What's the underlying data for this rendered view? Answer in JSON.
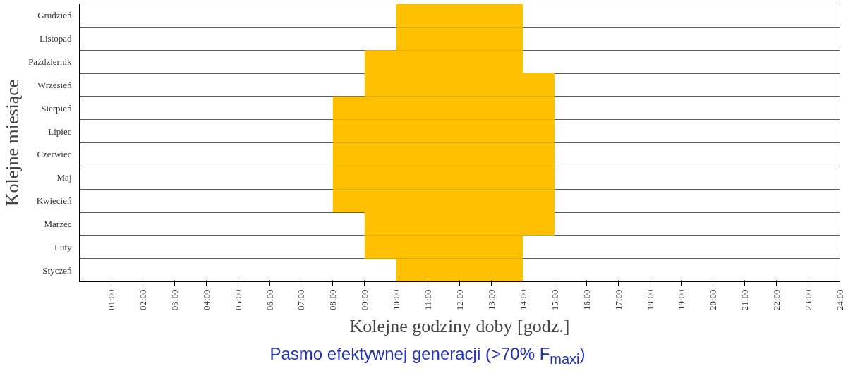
{
  "chart_data": {
    "type": "bar",
    "orientation": "horizontal",
    "xlabel": "Kolejne godziny doby [godz.]",
    "ylabel": "Kolejne miesiące",
    "categories": [
      "Grudzień",
      "Listopad",
      "Październik",
      "Wrzesień",
      "Sierpień",
      "Lipiec",
      "Czerwiec",
      "Maj",
      "Kwiecień",
      "Marzec",
      "Luty",
      "Styczeń"
    ],
    "base": [
      10,
      10,
      9,
      9,
      8,
      8,
      8,
      8,
      8,
      9,
      9,
      10
    ],
    "values": [
      4,
      4,
      5,
      6,
      7,
      7,
      7,
      7,
      7,
      6,
      5,
      4
    ],
    "color": "#ffc000",
    "xlim": [
      0,
      24
    ],
    "xticks": [
      {
        "value": 1,
        "label": "01:00"
      },
      {
        "value": 2,
        "label": "02:00"
      },
      {
        "value": 3,
        "label": "03:00"
      },
      {
        "value": 4,
        "label": "04:00"
      },
      {
        "value": 5,
        "label": "05:00"
      },
      {
        "value": 6,
        "label": "06:00"
      },
      {
        "value": 7,
        "label": "07:00"
      },
      {
        "value": 8,
        "label": "08:00"
      },
      {
        "value": 9,
        "label": "09:00"
      },
      {
        "value": 10,
        "label": "10:00"
      },
      {
        "value": 11,
        "label": "11:00"
      },
      {
        "value": 12,
        "label": "12:00"
      },
      {
        "value": 13,
        "label": "13:00"
      },
      {
        "value": 14,
        "label": "14:00"
      },
      {
        "value": 15,
        "label": "15:00"
      },
      {
        "value": 16,
        "label": "16:00"
      },
      {
        "value": 17,
        "label": "17:00"
      },
      {
        "value": 18,
        "label": "18:00"
      },
      {
        "value": 19,
        "label": "19:00"
      },
      {
        "value": 20,
        "label": "20:00"
      },
      {
        "value": 21,
        "label": "21:00"
      },
      {
        "value": 22,
        "label": "22:00"
      },
      {
        "value": 23,
        "label": "23:00"
      },
      {
        "value": 24,
        "label": "24:00"
      }
    ],
    "grid": "y",
    "annotations": [
      "Pasmo efektywnej generacji (>70% F$_{maxi}$)"
    ]
  }
}
